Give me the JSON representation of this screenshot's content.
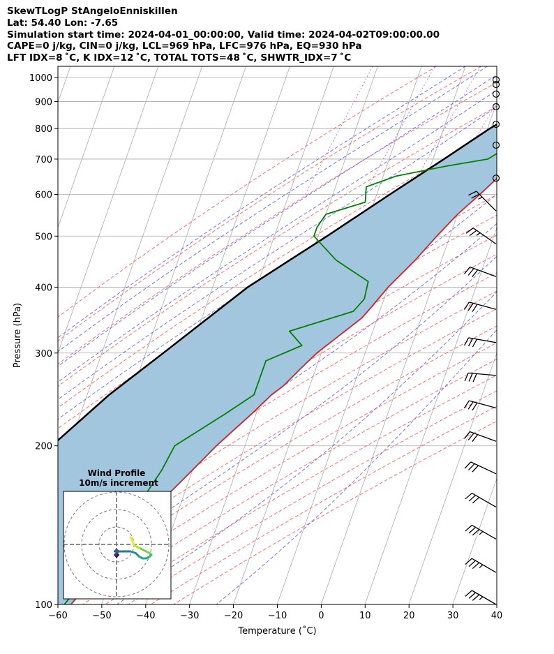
{
  "header": {
    "line1": "SkewTLogP StAngeloEnniskillen",
    "line2": "Lat: 54.40   Lon: -7.65",
    "line3": "Simulation start time: 2024-04-01_00:00:00, Valid time: 2024-04-02T09:00:00.00",
    "line4": "CAPE=0 j/kg, CIN=0 j/kg, LCL=969 hPa, LFC=976 hPa, EQ=930 hPa",
    "line5": "LFT IDX=8 ˚C, K IDX=12 ˚C, TOTAL TOTS=48 ˚C, SHWTR_IDX=7 ˚C"
  },
  "chart_data": {
    "type": "line",
    "subtype": "skewT-logP",
    "xlabel": "Temperature (˚C)",
    "ylabel": "Pressure (hPa)",
    "xlim": [
      -60,
      40
    ],
    "ylim": [
      1050,
      100
    ],
    "y_scale": "log",
    "x_ticks": [
      -60,
      -50,
      -40,
      -30,
      -20,
      -10,
      0,
      10,
      20,
      30,
      40
    ],
    "x_tick_labels": [
      "−60",
      "−50",
      "−40",
      "−30",
      "−20",
      "−10",
      "0",
      "10",
      "20",
      "30",
      "40"
    ],
    "y_ticks": [
      1000,
      900,
      800,
      700,
      600,
      500,
      400,
      300,
      200,
      100
    ],
    "grid": true,
    "colors": {
      "temperature": "#e41a1c",
      "dewpoint": "#008000",
      "parcel": "#000000",
      "shading": "#a3c6df",
      "dry_adiabats": "#ff5555",
      "moist_adiabats": "#4d4dff",
      "mixing_ratio": "#9933cc",
      "isotherms": "#aaaaaa"
    },
    "series": [
      {
        "role": "temperature",
        "points": [
          [
            1000,
            5.5
          ],
          [
            975,
            4.5
          ],
          [
            950,
            4.5
          ],
          [
            925,
            4.5
          ],
          [
            900,
            4.8
          ],
          [
            875,
            4.4
          ],
          [
            850,
            3.6
          ],
          [
            800,
            2.5
          ],
          [
            760,
            2.0
          ],
          [
            700,
            -1.0
          ],
          [
            650,
            -3.5
          ],
          [
            600,
            -6.5
          ],
          [
            550,
            -10
          ],
          [
            500,
            -13
          ],
          [
            450,
            -16
          ],
          [
            400,
            -20
          ],
          [
            370,
            -22
          ],
          [
            350,
            -23.5
          ],
          [
            300,
            -31
          ],
          [
            280,
            -33.5
          ],
          [
            260,
            -36
          ],
          [
            250,
            -38
          ],
          [
            230,
            -41
          ],
          [
            200,
            -46.5
          ],
          [
            180,
            -50
          ],
          [
            160,
            -54
          ],
          [
            140,
            -58
          ],
          [
            120,
            -62
          ],
          [
            100,
            -67
          ]
        ]
      },
      {
        "role": "dewpoint",
        "points": [
          [
            1000,
            5.2
          ],
          [
            975,
            3.5
          ],
          [
            950,
            3.2
          ],
          [
            925,
            3.0
          ],
          [
            900,
            2.8
          ],
          [
            875,
            1.5
          ],
          [
            850,
            0.5
          ],
          [
            800,
            -1.2
          ],
          [
            760,
            -2
          ],
          [
            700,
            -7.5
          ],
          [
            680,
            -16
          ],
          [
            650,
            -27
          ],
          [
            620,
            -33
          ],
          [
            580,
            -32
          ],
          [
            550,
            -40
          ],
          [
            520,
            -41
          ],
          [
            500,
            -41
          ],
          [
            450,
            -34
          ],
          [
            410,
            -25
          ],
          [
            380,
            -24.5
          ],
          [
            360,
            -26
          ],
          [
            330,
            -39
          ],
          [
            310,
            -35
          ],
          [
            290,
            -42
          ],
          [
            250,
            -42
          ],
          [
            230,
            -47
          ],
          [
            200,
            -56
          ],
          [
            180,
            -57
          ],
          [
            150,
            -60
          ],
          [
            120,
            -64
          ],
          [
            100,
            -68.5
          ]
        ]
      },
      {
        "role": "parcel",
        "points": [
          [
            1000,
            5.5
          ],
          [
            969,
            3.0
          ],
          [
            900,
            -1.5
          ],
          [
            850,
            -5.2
          ],
          [
            800,
            -9.5
          ],
          [
            700,
            -17.5
          ],
          [
            600,
            -27
          ],
          [
            500,
            -38
          ],
          [
            400,
            -52
          ],
          [
            300,
            -66
          ],
          [
            250,
            -75
          ],
          [
            200,
            -84
          ],
          [
            150,
            -96
          ],
          [
            100,
            -113
          ]
        ]
      }
    ],
    "wind_barbs": [
      {
        "p": 100,
        "dir": 300,
        "spd": 35
      },
      {
        "p": 115,
        "dir": 300,
        "spd": 35
      },
      {
        "p": 133,
        "dir": 300,
        "spd": 35
      },
      {
        "p": 153,
        "dir": 300,
        "spd": 30
      },
      {
        "p": 177,
        "dir": 295,
        "spd": 30
      },
      {
        "p": 204,
        "dir": 290,
        "spd": 30
      },
      {
        "p": 236,
        "dir": 285,
        "spd": 30
      },
      {
        "p": 272,
        "dir": 275,
        "spd": 30
      },
      {
        "p": 314,
        "dir": 280,
        "spd": 30
      },
      {
        "p": 363,
        "dir": 285,
        "spd": 30
      },
      {
        "p": 419,
        "dir": 290,
        "spd": 30
      },
      {
        "p": 483,
        "dir": 305,
        "spd": 25
      },
      {
        "p": 558,
        "dir": 315,
        "spd": 25
      },
      {
        "p": 644,
        "dir": 0,
        "spd": 0
      },
      {
        "p": 744,
        "dir": 0,
        "spd": 0
      },
      {
        "p": 815,
        "dir": 0,
        "spd": 0
      },
      {
        "p": 880,
        "dir": 0,
        "spd": 0
      },
      {
        "p": 930,
        "dir": 0,
        "spd": 0
      },
      {
        "p": 970,
        "dir": 0,
        "spd": 0
      },
      {
        "p": 990,
        "dir": 0,
        "spd": 0
      }
    ],
    "inset": {
      "title_line1": "Wind Profile",
      "title_line2": "10m/s increment",
      "rings": [
        10,
        20,
        30
      ],
      "hodograph": [
        [
          0,
          -5
        ],
        [
          1,
          -6
        ],
        [
          0,
          -7
        ],
        [
          -1,
          -6
        ],
        [
          0,
          -5
        ],
        [
          1,
          -4
        ],
        [
          0,
          -3
        ],
        [
          -1,
          -4
        ],
        [
          2,
          -4
        ],
        [
          5,
          -4
        ],
        [
          8,
          -4
        ],
        [
          11,
          -5
        ],
        [
          13,
          -7
        ],
        [
          15,
          -8
        ],
        [
          17,
          -8
        ],
        [
          19,
          -7
        ],
        [
          20,
          -6
        ],
        [
          19,
          -5
        ],
        [
          17,
          -4
        ],
        [
          15,
          -3
        ],
        [
          13,
          -2
        ],
        [
          11,
          -1
        ],
        [
          10,
          0
        ],
        [
          9,
          2
        ],
        [
          8,
          4
        ]
      ]
    }
  }
}
